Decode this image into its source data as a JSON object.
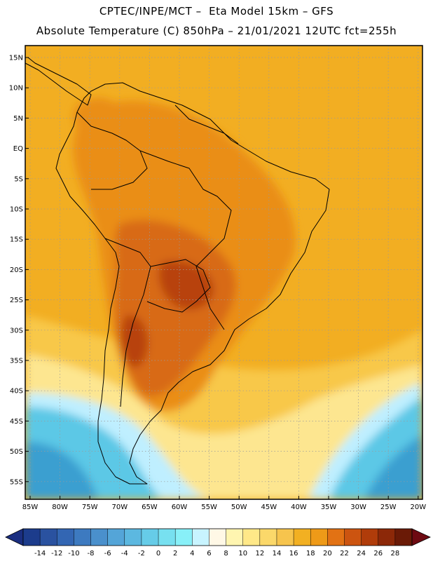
{
  "header": {
    "line1": "CPTEC/INPE/MCT –  Eta Model 15km – GFS",
    "line2": "Absolute Temperature (C) 850hPa – 21/01/2021 12UTC fct=255h"
  },
  "axes": {
    "lon_labels": [
      "85W",
      "80W",
      "75W",
      "70W",
      "65W",
      "60W",
      "55W",
      "50W",
      "45W",
      "40W",
      "35W",
      "30W",
      "25W",
      "20W"
    ],
    "lat_labels": [
      "15N",
      "10N",
      "5N",
      "EQ",
      "5S",
      "10S",
      "15S",
      "20S",
      "25S",
      "30S",
      "35S",
      "40S",
      "45S",
      "50S",
      "55S"
    ]
  },
  "colorbar": {
    "tick_labels": [
      "-14",
      "-12",
      "-10",
      "-8",
      "-6",
      "-4",
      "-2",
      "0",
      "2",
      "4",
      "6",
      "8",
      "10",
      "12",
      "14",
      "16",
      "18",
      "20",
      "22",
      "24",
      "26",
      "28"
    ],
    "colors": [
      "#1c3c8c",
      "#2a52a0",
      "#3366b3",
      "#3d7ac0",
      "#4a90cc",
      "#54a5d8",
      "#5cb8e0",
      "#66cce8",
      "#77e0f0",
      "#88f0f8",
      "#c8f4ff",
      "#fff8e6",
      "#fff5b0",
      "#ffe888",
      "#fbd86a",
      "#f6c44d",
      "#f2b022",
      "#ee9a18",
      "#e27214",
      "#cc5410",
      "#b03c0a",
      "#8c2808",
      "#6a1a06"
    ],
    "under_color": "#1a2e80",
    "over_color": "#6e0a12"
  },
  "map_colors": {
    "ocean_tropical": "#f2ae22",
    "warm": "#ea8e18",
    "hot": "#d86a16",
    "hottest": "#b8420e",
    "mild": "#f8c84a",
    "cool": "#fde690",
    "cold_light": "#bfefff",
    "cold": "#5cc8e6",
    "colder": "#3a9fd0"
  }
}
